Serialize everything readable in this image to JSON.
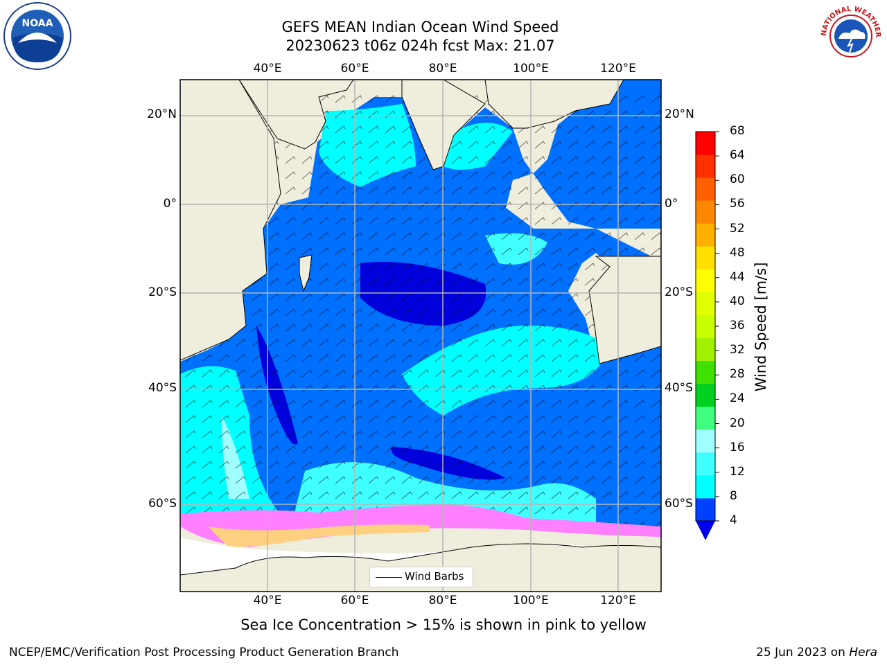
{
  "title": {
    "line1": "GEFS MEAN Indian Ocean Wind Speed",
    "line2": "20230623 t06z 024h fcst   Max: 21.07"
  },
  "map": {
    "lon_labels": [
      "40°E",
      "60°E",
      "80°E",
      "100°E",
      "120°E"
    ],
    "lat_labels": [
      "20°N",
      "0°",
      "20°S",
      "40°S",
      "60°S"
    ],
    "lon_range": [
      20,
      130
    ],
    "lat_range": [
      -73,
      27
    ],
    "colors": {
      "land": "#efeddc",
      "ice_free_ocean_low": "#0000dd",
      "grid": "#b5b5b5"
    }
  },
  "legend": {
    "label": "Wind Barbs"
  },
  "colorbar": {
    "title": "Wind Speed [m/s]",
    "ticks": [
      "68",
      "64",
      "60",
      "56",
      "52",
      "48",
      "44",
      "40",
      "36",
      "32",
      "28",
      "24",
      "20",
      "16",
      "12",
      "8",
      "4"
    ],
    "colors": [
      "#0040ff",
      "#00ffff",
      "#40ffff",
      "#a0ffff",
      "#40ff80",
      "#00d020",
      "#40e000",
      "#a0f000",
      "#c8ff00",
      "#e0ff00",
      "#ffff00",
      "#ffe000",
      "#ffb000",
      "#ff8800",
      "#ff6000",
      "#ff3000",
      "#ff0000"
    ],
    "under_color": "#0000ee"
  },
  "caption": "Sea Ice Concentration > 15% is shown in pink to yellow",
  "footer": {
    "left": "NCEP/EMC/Verification Post Processing Product Generation Branch",
    "date": "25 Jun 2023 on ",
    "machine": "Hera"
  },
  "logos": {
    "noaa_text": "NOAA",
    "nws_text": "NATIONAL WEATHER SERVICE"
  }
}
